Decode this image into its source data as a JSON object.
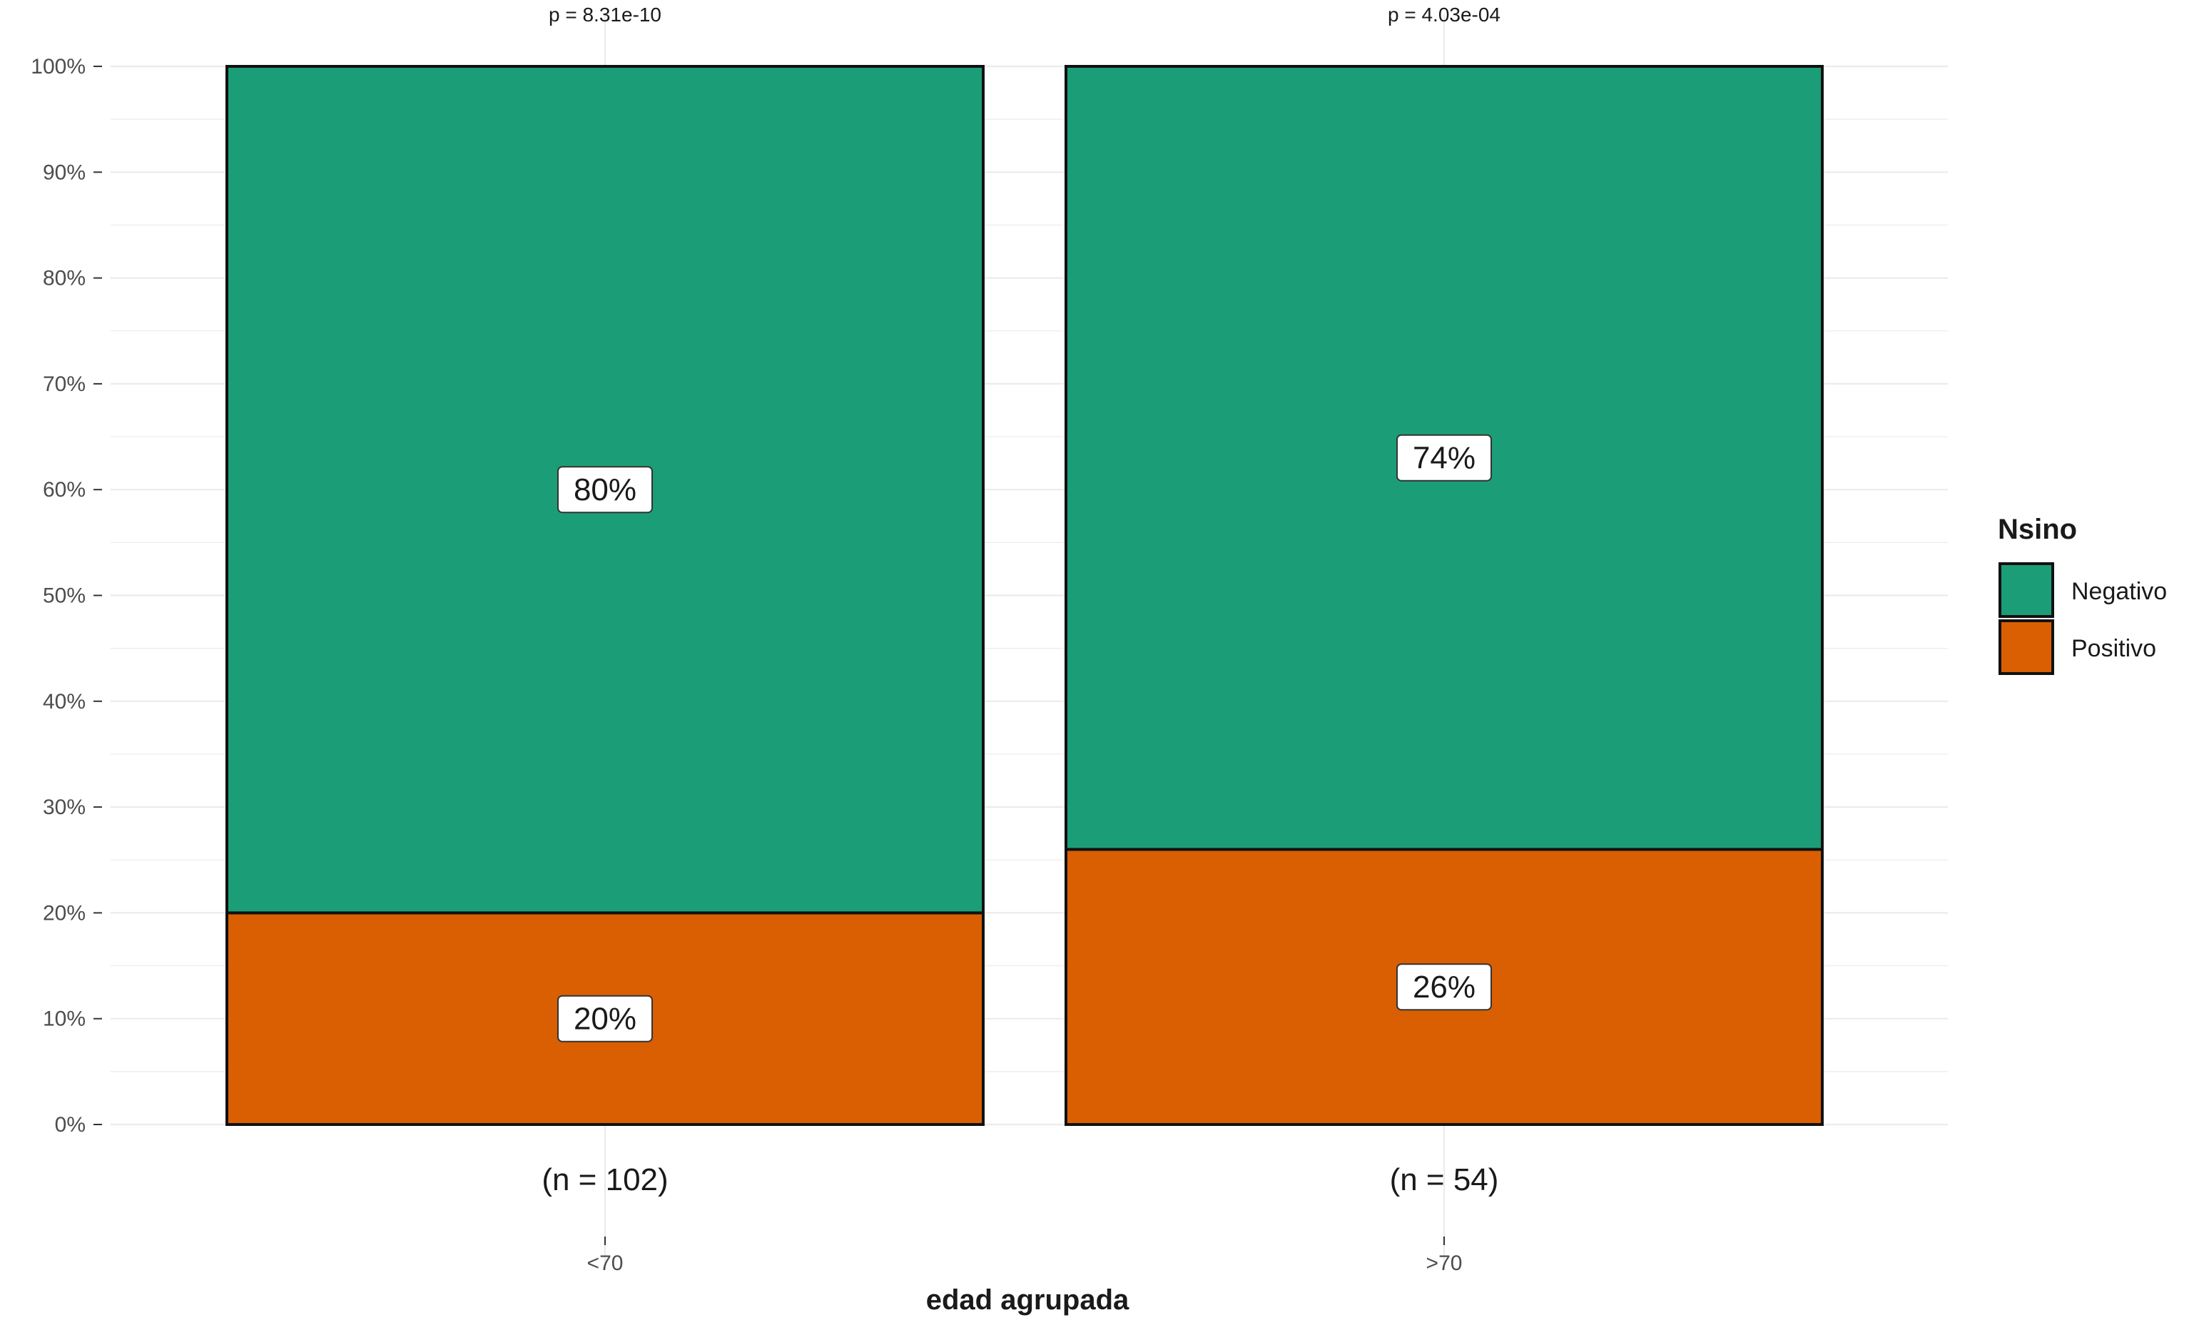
{
  "chart_data": {
    "type": "bar",
    "stacked": true,
    "percent": true,
    "categories": [
      "<70",
      ">70"
    ],
    "series": [
      {
        "name": "Positivo",
        "values": [
          20,
          26
        ],
        "color": "#D95F02",
        "labels": [
          "20%",
          "26%"
        ]
      },
      {
        "name": "Negativo",
        "values": [
          80,
          74
        ],
        "color": "#1B9E77",
        "labels": [
          "80%",
          "74%"
        ]
      }
    ],
    "counts": [
      "(n = 102)",
      "(n = 54)"
    ],
    "pvalues": [
      "p = 8.31e-10",
      "p = 4.03e-04"
    ],
    "xlabel": "edad agrupada",
    "ylabel": "",
    "ylim": [
      0,
      100
    ],
    "yticks": [
      "0%",
      "10%",
      "20%",
      "30%",
      "40%",
      "50%",
      "60%",
      "70%",
      "80%",
      "90%",
      "100%"
    ],
    "legend": {
      "title": "Nsino",
      "position": "right",
      "order": [
        "Negativo",
        "Positivo"
      ]
    },
    "grid": true
  }
}
